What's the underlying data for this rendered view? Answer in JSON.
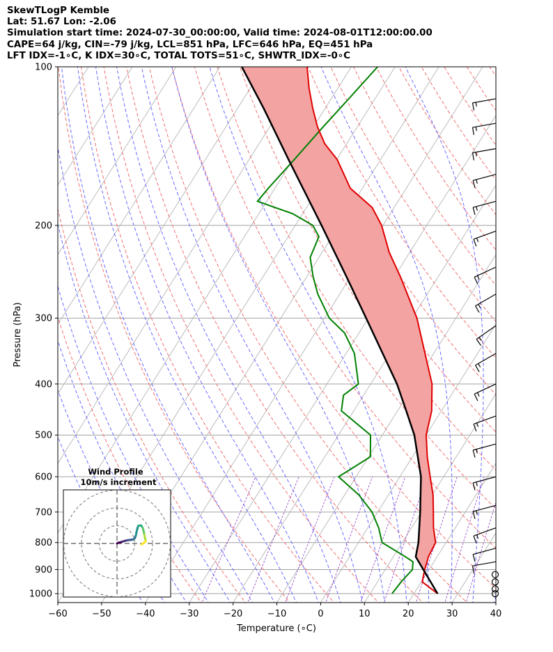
{
  "header": {
    "line1": "SkewTLogP Kemble",
    "line2": "Lat: 51.67   Lon: -2.06",
    "line3": "Simulation start time: 2024-07-30_00:00:00, Valid time: 2024-08-01T12:00:00.00",
    "line4": "CAPE=64 j/kg, CIN=-79 j/kg, LCL=851 hPa, LFC=646 hPa, EQ=451 hPa",
    "line5": "LFT IDX=-1∘C, K IDX=30∘C, TOTAL TOTS=51∘C, SHWTR_IDX=-0∘C"
  },
  "chart_data": {
    "type": "skewt",
    "xlabel": "Temperature (∘C)",
    "ylabel": "Pressure (hPa)",
    "xlim": [
      -60,
      40
    ],
    "ylim": [
      1040,
      100
    ],
    "x_ticks": [
      -60,
      -50,
      -40,
      -30,
      -20,
      -10,
      0,
      10,
      20,
      30,
      40
    ],
    "x_tick_labels": [
      "−60",
      "−50",
      "−40",
      "−30",
      "−20",
      "−10",
      "0",
      "10",
      "20",
      "30",
      "40"
    ],
    "y_ticks": [
      1000,
      900,
      800,
      700,
      600,
      500,
      400,
      300,
      200,
      100
    ],
    "y_tick_labels": [
      "1000",
      "900",
      "800",
      "700",
      "600",
      "500",
      "400",
      "300",
      "200",
      "100"
    ],
    "temperature_profile": {
      "color": "#e00000",
      "points": [
        [
          1000,
          25.4
        ],
        [
          950,
          20.2
        ],
        [
          900,
          19.0
        ],
        [
          850,
          18.0
        ],
        [
          800,
          17.6
        ],
        [
          750,
          15.0
        ],
        [
          700,
          12.7
        ],
        [
          650,
          10.2
        ],
        [
          600,
          6.9
        ],
        [
          550,
          3.4
        ],
        [
          500,
          0.0
        ],
        [
          450,
          -2.2
        ],
        [
          400,
          -6.0
        ],
        [
          350,
          -12.0
        ],
        [
          300,
          -18.9
        ],
        [
          250,
          -28.7
        ],
        [
          225,
          -34.7
        ],
        [
          200,
          -40.3
        ],
        [
          185,
          -45.0
        ],
        [
          170,
          -52.8
        ],
        [
          150,
          -59.9
        ],
        [
          140,
          -65.0
        ],
        [
          130,
          -69.1
        ],
        [
          120,
          -72.8
        ],
        [
          110,
          -76.5
        ],
        [
          100,
          -80.1
        ]
      ]
    },
    "dewpoint_profile": {
      "color": "#008000",
      "points": [
        [
          1000,
          15.0
        ],
        [
          950,
          15.4
        ],
        [
          900,
          16.2
        ],
        [
          870,
          15.2
        ],
        [
          850,
          12.6
        ],
        [
          800,
          5.4
        ],
        [
          750,
          2.5
        ],
        [
          700,
          -1.3
        ],
        [
          650,
          -6.7
        ],
        [
          600,
          -14.0
        ],
        [
          550,
          -9.6
        ],
        [
          500,
          -12.7
        ],
        [
          450,
          -22.8
        ],
        [
          420,
          -24.6
        ],
        [
          400,
          -22.8
        ],
        [
          350,
          -28.1
        ],
        [
          320,
          -33.3
        ],
        [
          300,
          -38.9
        ],
        [
          270,
          -45.0
        ],
        [
          250,
          -48.6
        ],
        [
          230,
          -52.0
        ],
        [
          210,
          -53.0
        ],
        [
          200,
          -56.0
        ],
        [
          190,
          -62.3
        ],
        [
          180,
          -72.1
        ],
        [
          170,
          -71.5
        ],
        [
          150,
          -69.7
        ],
        [
          130,
          -67.8
        ],
        [
          115,
          -66.0
        ],
        [
          100,
          -64.0
        ]
      ]
    },
    "parcel_profile": {
      "color": "#000000",
      "points": [
        [
          1000,
          25.4
        ],
        [
          851,
          15.1
        ],
        [
          800,
          13.7
        ],
        [
          700,
          9.7
        ],
        [
          600,
          4.8
        ],
        [
          500,
          -2.7
        ],
        [
          450,
          -8.0
        ],
        [
          400,
          -14.0
        ],
        [
          300,
          -30.5
        ],
        [
          250,
          -41.0
        ],
        [
          200,
          -54.0
        ],
        [
          150,
          -71.0
        ],
        [
          120,
          -84.0
        ],
        [
          100,
          -95.0
        ]
      ]
    },
    "cape_fill_color": "#a4c6e0",
    "cin_fill_color": "#f4a3a3",
    "wind_barbs": {
      "units": "kt",
      "barbs": [
        {
          "p": 1000,
          "speed": 0,
          "dir": 0
        },
        {
          "p": 980,
          "speed": 0,
          "dir": 0
        },
        {
          "p": 950,
          "speed": 0,
          "dir": 0
        },
        {
          "p": 920,
          "speed": 0,
          "dir": 0
        },
        {
          "p": 870,
          "speed": 10,
          "dir": 260
        },
        {
          "p": 820,
          "speed": 12,
          "dir": 255
        },
        {
          "p": 750,
          "speed": 13,
          "dir": 250
        },
        {
          "p": 680,
          "speed": 15,
          "dir": 255
        },
        {
          "p": 600,
          "speed": 15,
          "dir": 255
        },
        {
          "p": 520,
          "speed": 15,
          "dir": 255
        },
        {
          "p": 460,
          "speed": 15,
          "dir": 250
        },
        {
          "p": 400,
          "speed": 15,
          "dir": 245
        },
        {
          "p": 350,
          "speed": 15,
          "dir": 240
        },
        {
          "p": 310,
          "speed": 15,
          "dir": 235
        },
        {
          "p": 270,
          "speed": 15,
          "dir": 240
        },
        {
          "p": 240,
          "speed": 15,
          "dir": 245
        },
        {
          "p": 205,
          "speed": 15,
          "dir": 250
        },
        {
          "p": 180,
          "speed": 15,
          "dir": 255
        },
        {
          "p": 160,
          "speed": 15,
          "dir": 255
        },
        {
          "p": 143,
          "speed": 15,
          "dir": 260
        },
        {
          "p": 128,
          "speed": 15,
          "dir": 260
        },
        {
          "p": 115,
          "speed": 15,
          "dir": 260
        }
      ]
    },
    "hodograph": {
      "title": "Wind Profile",
      "subtitle": "10m/s increment",
      "ring_spacing_ms": 10,
      "rings": 3,
      "points": [
        [
          0.0,
          0.0
        ],
        [
          0.8,
          0.4
        ],
        [
          1.8,
          0.6
        ],
        [
          3.0,
          1.0
        ],
        [
          4.5,
          1.5
        ],
        [
          6.0,
          1.8
        ],
        [
          7.5,
          2.0
        ],
        [
          9.0,
          2.2
        ],
        [
          10.0,
          3.0
        ],
        [
          10.6,
          4.5
        ],
        [
          11.0,
          6.5
        ],
        [
          11.5,
          8.5
        ],
        [
          12.0,
          10.0
        ],
        [
          13.5,
          10.2
        ],
        [
          14.5,
          8.8
        ],
        [
          15.0,
          7.0
        ],
        [
          15.4,
          5.0
        ],
        [
          15.8,
          3.0
        ],
        [
          16.2,
          1.2
        ],
        [
          15.0,
          0.2
        ],
        [
          13.8,
          -0.6
        ]
      ]
    }
  }
}
